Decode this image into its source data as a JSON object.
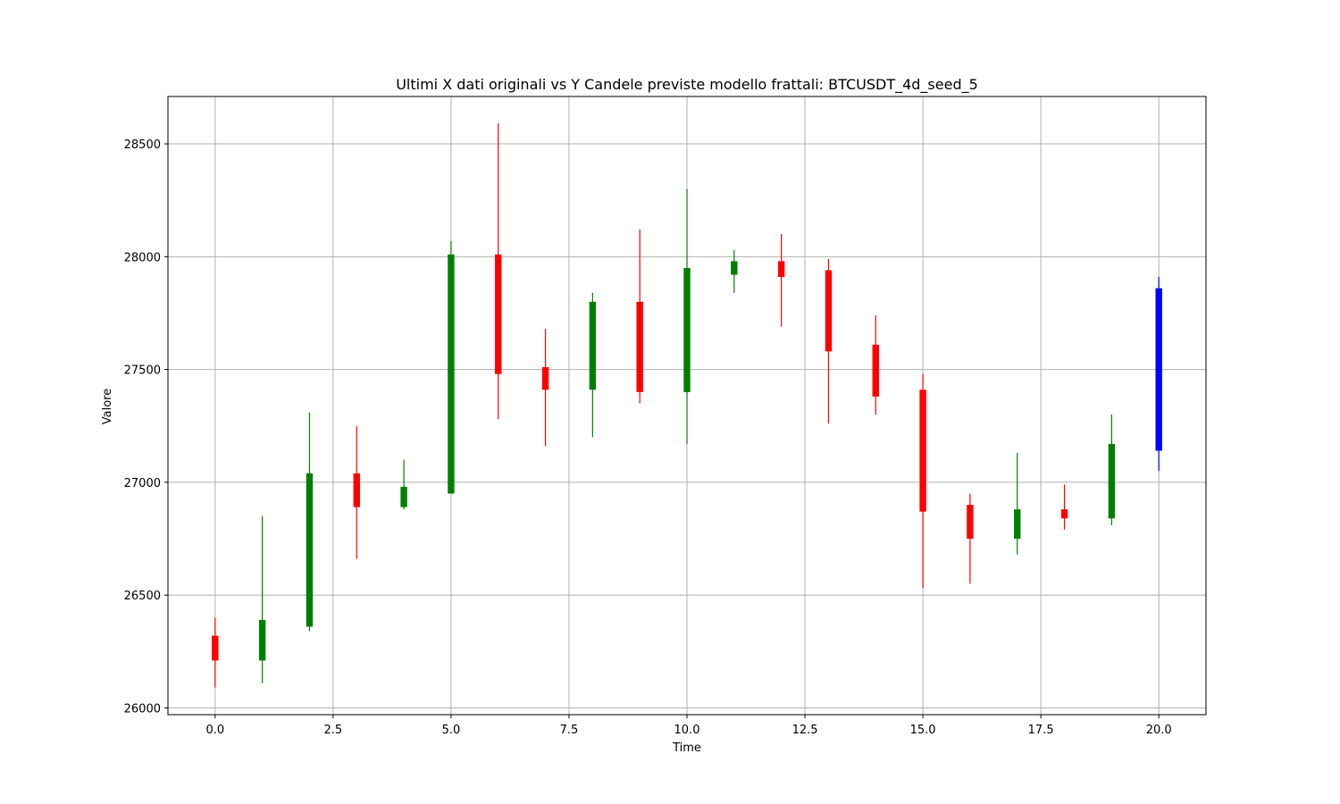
{
  "chart_data": {
    "type": "candlestick",
    "title": "Ultimi X dati originali vs Y Candele previste modello frattali: BTCUSDT_4d_seed_5",
    "xlabel": "Time",
    "ylabel": "Valore",
    "xlim": [
      -1.0,
      21.0
    ],
    "ylim": [
      25970,
      28710
    ],
    "x_ticks": [
      0.0,
      2.5,
      5.0,
      7.5,
      10.0,
      12.5,
      15.0,
      17.5,
      20.0
    ],
    "x_tick_labels": [
      "0.0",
      "2.5",
      "5.0",
      "7.5",
      "10.0",
      "12.5",
      "15.0",
      "17.5",
      "20.0"
    ],
    "y_ticks": [
      26000,
      26500,
      27000,
      27500,
      28000,
      28500
    ],
    "y_tick_labels": [
      "26000",
      "26500",
      "27000",
      "27500",
      "28000",
      "28500"
    ],
    "grid": true,
    "colors": {
      "up": "#008000",
      "down": "#ff0000",
      "forecast": "#0000ff"
    },
    "candles": [
      {
        "x": 0,
        "open": 26320,
        "high": 26400,
        "low": 26090,
        "close": 26210,
        "color": "down"
      },
      {
        "x": 1,
        "open": 26210,
        "high": 26850,
        "low": 26110,
        "close": 26390,
        "color": "up"
      },
      {
        "x": 2,
        "open": 26360,
        "high": 27310,
        "low": 26340,
        "close": 27040,
        "color": "up"
      },
      {
        "x": 3,
        "open": 27040,
        "high": 27250,
        "low": 26660,
        "close": 26890,
        "color": "down"
      },
      {
        "x": 4,
        "open": 26890,
        "high": 27100,
        "low": 26880,
        "close": 26980,
        "color": "up"
      },
      {
        "x": 5,
        "open": 26950,
        "high": 28070,
        "low": 26950,
        "close": 28010,
        "color": "up"
      },
      {
        "x": 6,
        "open": 28010,
        "high": 28590,
        "low": 27280,
        "close": 27480,
        "color": "down"
      },
      {
        "x": 7,
        "open": 27510,
        "high": 27680,
        "low": 27160,
        "close": 27410,
        "color": "down"
      },
      {
        "x": 8,
        "open": 27410,
        "high": 27840,
        "low": 27200,
        "close": 27800,
        "color": "up"
      },
      {
        "x": 9,
        "open": 27800,
        "high": 28120,
        "low": 27350,
        "close": 27400,
        "color": "down"
      },
      {
        "x": 10,
        "open": 27400,
        "high": 28300,
        "low": 27170,
        "close": 27950,
        "color": "up"
      },
      {
        "x": 11,
        "open": 27920,
        "high": 28030,
        "low": 27840,
        "close": 27980,
        "color": "up"
      },
      {
        "x": 12,
        "open": 27980,
        "high": 28100,
        "low": 27690,
        "close": 27910,
        "color": "down"
      },
      {
        "x": 13,
        "open": 27940,
        "high": 27990,
        "low": 27260,
        "close": 27580,
        "color": "down"
      },
      {
        "x": 14,
        "open": 27610,
        "high": 27740,
        "low": 27300,
        "close": 27380,
        "color": "down"
      },
      {
        "x": 15,
        "open": 27410,
        "high": 27480,
        "low": 26530,
        "close": 26870,
        "color": "down"
      },
      {
        "x": 16,
        "open": 26900,
        "high": 26950,
        "low": 26550,
        "close": 26750,
        "color": "down"
      },
      {
        "x": 17,
        "open": 26750,
        "high": 27130,
        "low": 26680,
        "close": 26880,
        "color": "up"
      },
      {
        "x": 18,
        "open": 26880,
        "high": 26990,
        "low": 26790,
        "close": 26840,
        "color": "down"
      },
      {
        "x": 19,
        "open": 26840,
        "high": 27300,
        "low": 26810,
        "close": 27170,
        "color": "up"
      },
      {
        "x": 20,
        "open": 27140,
        "high": 27910,
        "low": 27050,
        "close": 27860,
        "color": "forecast"
      }
    ]
  }
}
